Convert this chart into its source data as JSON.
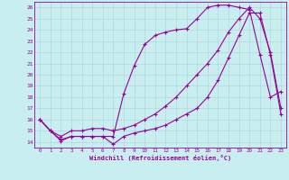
{
  "xlabel": "Windchill (Refroidissement éolien,°C)",
  "bg_color": "#c8eef0",
  "grid_color": "#b0d8dc",
  "line_color": "#990099",
  "xlim": [
    -0.5,
    23.5
  ],
  "ylim": [
    13.5,
    26.5
  ],
  "xticks": [
    0,
    1,
    2,
    3,
    4,
    5,
    6,
    7,
    8,
    9,
    10,
    11,
    12,
    13,
    14,
    15,
    16,
    17,
    18,
    19,
    20,
    21,
    22,
    23
  ],
  "yticks": [
    14,
    15,
    16,
    17,
    18,
    19,
    20,
    21,
    22,
    23,
    24,
    25,
    26
  ],
  "line1_x": [
    0,
    1,
    2,
    3,
    4,
    5,
    6,
    7,
    8,
    9,
    10,
    11,
    12,
    13,
    14,
    15,
    16,
    17,
    18,
    19,
    20,
    21,
    22,
    23
  ],
  "line1_y": [
    16,
    15,
    14.1,
    14.5,
    14.5,
    14.5,
    14.5,
    13.8,
    14.5,
    14.8,
    15.0,
    15.2,
    15.5,
    16.0,
    16.5,
    17.0,
    18.0,
    19.5,
    21.5,
    23.5,
    25.5,
    25.5,
    21.8,
    16.5
  ],
  "line2_x": [
    0,
    1,
    2,
    3,
    4,
    5,
    6,
    7,
    8,
    9,
    10,
    11,
    12,
    13,
    14,
    15,
    16,
    17,
    18,
    19,
    20,
    21,
    22,
    23
  ],
  "line2_y": [
    16,
    15,
    14.2,
    14.5,
    14.5,
    14.5,
    14.5,
    14.5,
    18.3,
    20.8,
    22.7,
    23.5,
    23.8,
    24.0,
    24.1,
    25.0,
    26.0,
    26.2,
    26.2,
    26.0,
    25.8,
    21.8,
    18.0,
    18.5
  ],
  "line3_x": [
    0,
    1,
    2,
    3,
    4,
    5,
    6,
    7,
    8,
    9,
    10,
    11,
    12,
    13,
    14,
    15,
    16,
    17,
    18,
    19,
    20,
    21,
    22,
    23
  ],
  "line3_y": [
    16,
    15.0,
    14.5,
    15.0,
    15.0,
    15.2,
    15.2,
    15.0,
    15.2,
    15.5,
    16.0,
    16.5,
    17.2,
    18.0,
    19.0,
    20.0,
    21.0,
    22.2,
    23.8,
    25.0,
    26.0,
    25.0,
    22.0,
    17.0
  ]
}
